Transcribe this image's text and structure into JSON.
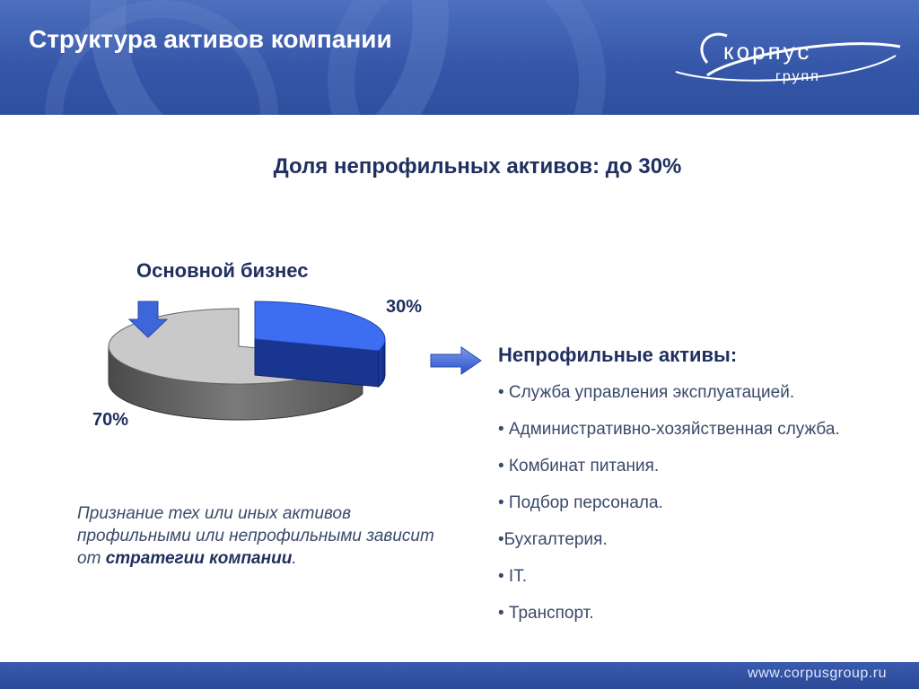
{
  "header": {
    "title": "Структура активов компании"
  },
  "logo": {
    "line1": "корпус",
    "line2": "групп"
  },
  "subtitle": "Доля непрофильных активов: до 30%",
  "chart_data": {
    "type": "pie",
    "labels": [
      "Основной бизнес",
      "Непрофильные активы"
    ],
    "values": [
      70,
      30
    ],
    "value_labels": [
      "70%",
      "30%"
    ],
    "colors": [
      "#c9c9c9",
      "#3d6df0"
    ],
    "style": "3d-exploded"
  },
  "pie_labels": {
    "core": "Основной бизнес",
    "pct_core": "70%",
    "pct_noncore": "30%"
  },
  "noncore": {
    "heading": "Непрофильные активы:",
    "items": [
      "• Служба управления эксплуатацией.",
      "• Административно-хозяйственная служба.",
      "• Комбинат питания.",
      "• Подбор персонала.",
      "•Бухгалтерия.",
      "•  IT.",
      "• Транспорт."
    ]
  },
  "note": {
    "text1": "Признание тех или иных активов профильными или непрофильными зависит от ",
    "bold": "стратегии компании",
    "text2": "."
  },
  "footer": {
    "url": "www.corpusgroup.ru"
  },
  "colors": {
    "header": "#3556a8",
    "text_dark": "#1f2f5f",
    "accent_blue": "#3d6df0"
  }
}
